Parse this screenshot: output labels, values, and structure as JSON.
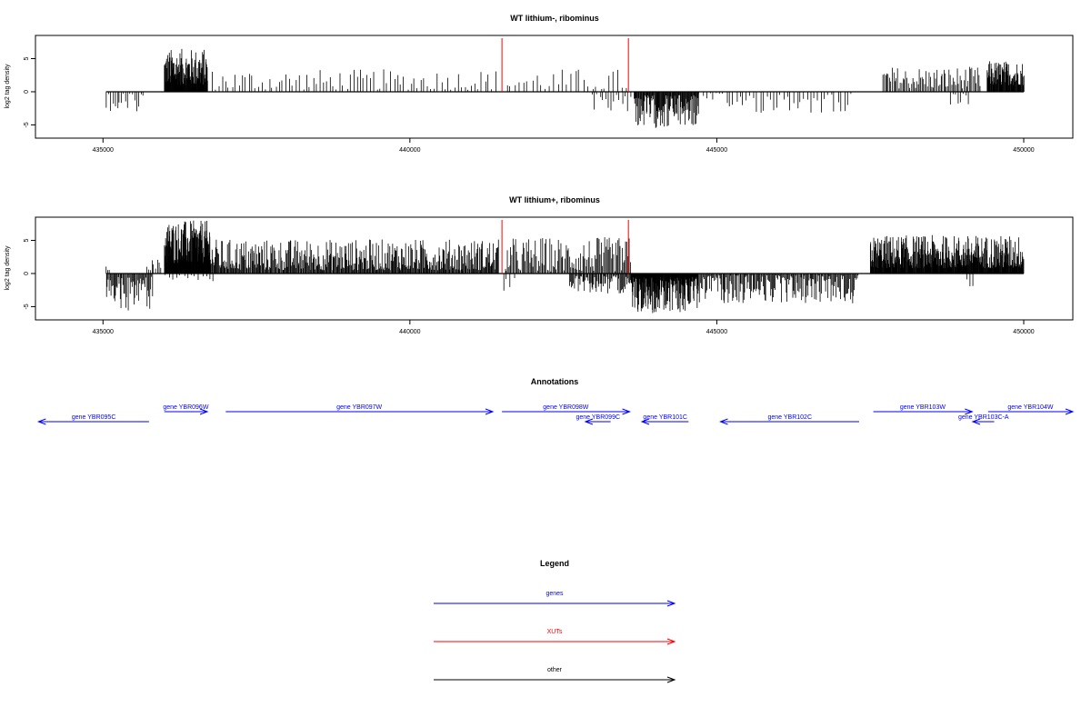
{
  "colors": {
    "gene": "#0000ff",
    "xut": "#ff0000",
    "other": "#000000",
    "frame": "#000000"
  },
  "chart_data": [
    {
      "type": "bar",
      "title": "WT lithium-, ribominus",
      "ylabel": "log2 tag density",
      "xlim": [
        433900,
        450800
      ],
      "ylim": [
        -7,
        8.5
      ],
      "xticks": [
        435000,
        440000,
        445000,
        450000
      ],
      "xtick_labels": [
        "435000",
        "440000",
        "445000",
        "450000"
      ],
      "yticks": [
        -5,
        0,
        5
      ],
      "ytick_labels": [
        "-5",
        "0",
        "5"
      ],
      "baseline": [
        435050,
        450000
      ],
      "red_markers": [
        441500,
        443560
      ],
      "series": [
        {
          "strand": "plus",
          "segments": [
            {
              "from": 436000,
              "to": 436700,
              "step": 6,
              "lo": 1.0,
              "hi": 6.5
            },
            {
              "from": 436700,
              "to": 441400,
              "step": 55,
              "lo": 0.3,
              "hi": 3.4
            },
            {
              "from": 441550,
              "to": 443550,
              "step": 70,
              "lo": 0.2,
              "hi": 3.5
            },
            {
              "from": 447700,
              "to": 449300,
              "step": 22,
              "lo": 0.5,
              "hi": 3.8
            },
            {
              "from": 449400,
              "to": 450000,
              "step": 8,
              "lo": 1.0,
              "hi": 4.7
            }
          ]
        },
        {
          "strand": "minus",
          "segments": [
            {
              "from": 435050,
              "to": 435650,
              "step": 35,
              "lo": 0.3,
              "hi": 3.6
            },
            {
              "from": 442950,
              "to": 443600,
              "step": 45,
              "lo": 0.3,
              "hi": 3.0
            },
            {
              "from": 443650,
              "to": 444700,
              "step": 10,
              "lo": 0.5,
              "hi": 5.5
            },
            {
              "from": 444700,
              "to": 447200,
              "step": 55,
              "lo": 0.2,
              "hi": 3.3
            },
            {
              "from": 448800,
              "to": 449100,
              "step": 40,
              "lo": 0.3,
              "hi": 2.0
            }
          ]
        }
      ]
    },
    {
      "type": "bar",
      "title": "WT lithium+, ribominus",
      "ylabel": "log2 tag density",
      "xlim": [
        433900,
        450800
      ],
      "ylim": [
        -7,
        8.5
      ],
      "xticks": [
        435000,
        440000,
        445000,
        450000
      ],
      "xtick_labels": [
        "435000",
        "440000",
        "445000",
        "450000"
      ],
      "yticks": [
        -5,
        0,
        5
      ],
      "ytick_labels": [
        "-5",
        "0",
        "5"
      ],
      "baseline": [
        435050,
        450000
      ],
      "red_markers": [
        441500,
        443560
      ],
      "series": [
        {
          "strand": "plus",
          "segments": [
            {
              "from": 435050,
              "to": 435100,
              "step": 25,
              "lo": 0.5,
              "hi": 1.8
            },
            {
              "from": 435700,
              "to": 435950,
              "step": 30,
              "lo": 0.5,
              "hi": 2.2
            },
            {
              "from": 436000,
              "to": 436750,
              "step": 5,
              "lo": 1.5,
              "hi": 8.0
            },
            {
              "from": 436750,
              "to": 441450,
              "step": 12,
              "lo": 0.5,
              "hi": 5.2
            },
            {
              "from": 441550,
              "to": 443600,
              "step": 18,
              "lo": 0.3,
              "hi": 5.5
            },
            {
              "from": 447500,
              "to": 450000,
              "step": 7,
              "lo": 0.8,
              "hi": 5.8
            }
          ]
        },
        {
          "strand": "minus",
          "segments": [
            {
              "from": 435050,
              "to": 435800,
              "step": 15,
              "lo": 0.5,
              "hi": 5.6
            },
            {
              "from": 436000,
              "to": 436800,
              "step": 60,
              "lo": 0.2,
              "hi": 1.2
            },
            {
              "from": 441500,
              "to": 441700,
              "step": 60,
              "lo": 0.5,
              "hi": 2.8
            },
            {
              "from": 442600,
              "to": 443600,
              "step": 15,
              "lo": 0.3,
              "hi": 3.0
            },
            {
              "from": 443600,
              "to": 444700,
              "step": 6,
              "lo": 0.5,
              "hi": 6.0
            },
            {
              "from": 444700,
              "to": 447300,
              "step": 15,
              "lo": 0.3,
              "hi": 4.5
            },
            {
              "from": 449050,
              "to": 449150,
              "step": 50,
              "lo": 0.5,
              "hi": 2.2
            }
          ]
        }
      ]
    }
  ],
  "annotations": {
    "title": "Annotations",
    "genes": [
      {
        "label": "gene YBR095C",
        "start": 435750,
        "end": 433950,
        "row": 1
      },
      {
        "label": "gene YBR096W",
        "start": 436000,
        "end": 436700,
        "row": 0
      },
      {
        "label": "gene YBR097W",
        "start": 437000,
        "end": 441350,
        "row": 0
      },
      {
        "label": "gene YBR098W",
        "start": 441500,
        "end": 443580,
        "row": 0
      },
      {
        "label": "gene YBR099C",
        "start": 443270,
        "end": 442860,
        "row": 1
      },
      {
        "label": "gene YBR101C",
        "start": 444540,
        "end": 443780,
        "row": 1
      },
      {
        "label": "gene YBR102C",
        "start": 447320,
        "end": 445060,
        "row": 1
      },
      {
        "label": "gene YBR103W",
        "start": 447550,
        "end": 449160,
        "row": 0
      },
      {
        "label": "gene YBR103C-A",
        "start": 449520,
        "end": 449170,
        "row": 1
      },
      {
        "label": "gene YBR104W",
        "start": 449420,
        "end": 450800,
        "row": 0
      }
    ]
  },
  "legend": {
    "title": "Legend",
    "items": [
      {
        "label": "genes",
        "color": "#0000ff"
      },
      {
        "label": "XUTs",
        "color": "#ff0000"
      },
      {
        "label": "other",
        "color": "#000000"
      }
    ]
  }
}
